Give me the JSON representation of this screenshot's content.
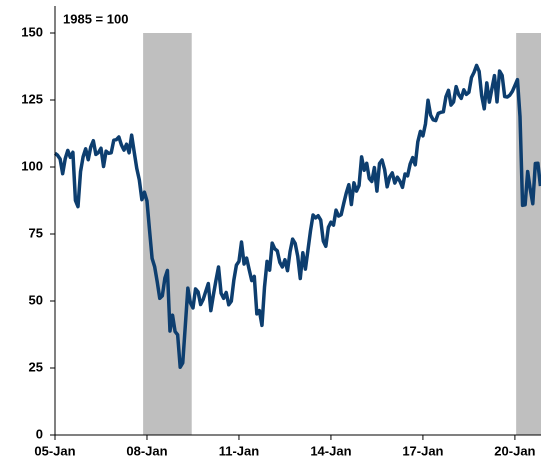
{
  "chart_data": {
    "type": "line",
    "annotation": "1985 = 100",
    "categories": [
      "05-Jan",
      null,
      null,
      null,
      null,
      null,
      null,
      null,
      null,
      null,
      null,
      null,
      null,
      null,
      null,
      null,
      null,
      null,
      null,
      null,
      null,
      null,
      null,
      null,
      null,
      null,
      null,
      null,
      null,
      null,
      null,
      null,
      null,
      null,
      null,
      null,
      "08-Jan",
      null,
      null,
      null,
      null,
      null,
      null,
      null,
      null,
      null,
      null,
      null,
      null,
      null,
      null,
      null,
      null,
      null,
      null,
      null,
      null,
      null,
      null,
      null,
      null,
      null,
      null,
      null,
      null,
      null,
      null,
      null,
      null,
      null,
      null,
      null,
      "11-Jan",
      null,
      null,
      null,
      null,
      null,
      null,
      null,
      null,
      null,
      null,
      null,
      null,
      null,
      null,
      null,
      null,
      null,
      null,
      null,
      null,
      null,
      null,
      null,
      null,
      null,
      null,
      null,
      null,
      null,
      null,
      null,
      null,
      null,
      null,
      null,
      "14-Jan",
      null,
      null,
      null,
      null,
      null,
      null,
      null,
      null,
      null,
      null,
      null,
      null,
      null,
      null,
      null,
      null,
      null,
      null,
      null,
      null,
      null,
      null,
      null,
      null,
      null,
      null,
      null,
      null,
      null,
      null,
      null,
      null,
      null,
      null,
      null,
      "17-Jan",
      null,
      null,
      null,
      null,
      null,
      null,
      null,
      null,
      null,
      null,
      null,
      null,
      null,
      null,
      null,
      null,
      null,
      null,
      null,
      null,
      null,
      null,
      null,
      null,
      null,
      null,
      null,
      null,
      null,
      null,
      null,
      null,
      null,
      null,
      null,
      "20-Jan",
      null,
      null,
      null,
      null,
      null,
      null,
      null,
      null,
      null,
      null
    ],
    "series": [
      {
        "name": null,
        "color": "#0d3e6f",
        "values": [
          105.1,
          104.4,
          103.0,
          97.5,
          103.1,
          106.2,
          103.6,
          105.5,
          87.5,
          85.2,
          98.3,
          103.8,
          106.8,
          102.7,
          107.5,
          109.8,
          104.7,
          105.4,
          107.0,
          100.2,
          105.9,
          105.1,
          105.3,
          110.0,
          110.2,
          111.2,
          108.2,
          106.3,
          108.5,
          105.3,
          111.9,
          105.6,
          99.5,
          95.2,
          87.8,
          90.6,
          87.3,
          76.4,
          65.9,
          62.8,
          57.2,
          51.0,
          51.9,
          58.5,
          61.4,
          38.8,
          44.7,
          38.6,
          37.4,
          25.3,
          26.9,
          40.8,
          54.8,
          49.3,
          47.4,
          54.5,
          53.4,
          48.7,
          50.6,
          53.6,
          56.5,
          46.4,
          52.3,
          57.7,
          62.7,
          52.9,
          51.0,
          53.2,
          48.6,
          49.9,
          57.8,
          63.4,
          64.8,
          72.0,
          63.8,
          66.0,
          61.7,
          57.6,
          59.2,
          45.2,
          46.4,
          40.9,
          55.2,
          64.8,
          61.5,
          71.6,
          69.5,
          68.7,
          64.4,
          62.7,
          65.4,
          61.3,
          68.4,
          73.1,
          71.5,
          66.7,
          58.4,
          68.0,
          61.9,
          69.0,
          76.2,
          82.1,
          81.0,
          81.8,
          80.2,
          72.4,
          70.4,
          77.5,
          79.4,
          78.3,
          83.9,
          81.7,
          82.2,
          86.4,
          90.3,
          93.4,
          86.0,
          94.1,
          91.0,
          93.1,
          103.8,
          98.8,
          101.4,
          95.7,
          94.6,
          99.8,
          91.0,
          101.3,
          102.6,
          99.1,
          92.6,
          96.3,
          97.8,
          94.0,
          96.2,
          94.7,
          92.4,
          97.4,
          96.7,
          101.1,
          103.5,
          100.8,
          109.4,
          113.3,
          111.6,
          116.1,
          124.9,
          119.4,
          117.6,
          117.3,
          120.0,
          120.4,
          120.6,
          126.2,
          128.6,
          123.1,
          124.3,
          130.0,
          127.0,
          125.6,
          128.8,
          127.1,
          127.9,
          133.4,
          135.3,
          137.9,
          135.7,
          126.6,
          121.7,
          131.4,
          124.2,
          129.2,
          134.1,
          124.3,
          135.8,
          134.2,
          126.3,
          126.1,
          126.8,
          128.2,
          130.4,
          132.6,
          118.8,
          85.7,
          85.9,
          98.3,
          91.7,
          86.3,
          101.3,
          101.4,
          92.9
        ]
      }
    ],
    "shaded_ranges": [
      [
        35,
        53
      ],
      [
        181,
        190
      ]
    ],
    "shade_color": "#bfbfbf",
    "ylim": [
      0,
      150
    ],
    "yticks": [
      0,
      25,
      50,
      75,
      100,
      125,
      150
    ],
    "grid": false
  }
}
